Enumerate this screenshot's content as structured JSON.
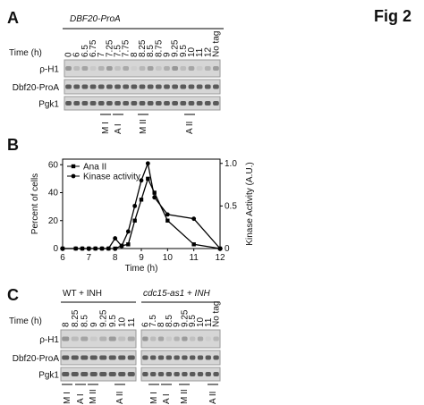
{
  "figure_label": "Fig 2",
  "panel_a": {
    "label": "A",
    "title": "DBF20-ProA",
    "time_label": "Time (h)",
    "times": [
      "0",
      "6",
      "6.5",
      "6.75",
      "7",
      "7.25",
      "7.5",
      "7.75",
      "8",
      "8.25",
      "8.5",
      "8.75",
      "9",
      "9.25",
      "9.5",
      "10",
      "11",
      "12",
      "No tag"
    ],
    "rows": [
      "ρ-H1",
      "Dbf20-ProA",
      "Pgk1"
    ],
    "phases": [
      "M I",
      "A I",
      "M II",
      "A II"
    ]
  },
  "chart_data": {
    "type": "line",
    "label": "B",
    "xlabel": "Time (h)",
    "ylabel": "Percent of cells",
    "y2label": "Kinase Activity (A.U.)",
    "x": [
      6,
      6.5,
      6.75,
      7,
      7.25,
      7.5,
      7.75,
      8,
      8.25,
      8.5,
      8.75,
      9,
      9.25,
      9.5,
      10,
      11,
      12
    ],
    "series": [
      {
        "name": "Ana II",
        "color": "#000000",
        "marker": "square",
        "values": [
          0,
          0,
          0,
          0,
          0,
          0,
          0,
          0,
          2,
          3,
          20,
          35,
          50,
          40,
          20,
          3,
          0
        ]
      },
      {
        "name": "Kinase activity",
        "color": "#000000",
        "marker": "circle",
        "axis": "y2",
        "values": [
          0,
          0,
          0,
          0,
          0,
          0,
          0,
          0.12,
          0.03,
          0.2,
          0.5,
          0.8,
          1.0,
          0.6,
          0.4,
          0.35,
          0
        ]
      }
    ],
    "xlim": [
      6,
      12
    ],
    "xticks": [
      6,
      7,
      8,
      9,
      10,
      11,
      12
    ],
    "ylim": [
      0,
      64
    ],
    "yticks": [
      0,
      20,
      40,
      60
    ],
    "y2lim": [
      0,
      1.05
    ],
    "y2ticks": [
      0,
      {
        "value": 0.5,
        "label": "0.5"
      },
      {
        "value": 1,
        "label": "1.0"
      }
    ],
    "legend": "upper left"
  },
  "panel_c": {
    "label": "C",
    "time_label": "Time (h)",
    "groups": [
      {
        "title": "WT + INH",
        "times": [
          "8",
          "8.25",
          "8.5",
          "9",
          "9.25",
          "9.5",
          "10",
          "11"
        ],
        "phases": [
          "M I",
          "A I",
          "M II",
          "A II"
        ]
      },
      {
        "title": "cdc15-as1 + INH",
        "times": [
          "6",
          "7.5",
          "8",
          "8.5",
          "9",
          "9.25",
          "9.5",
          "10",
          "11",
          "No tag"
        ],
        "phases": [
          "M I",
          "A I",
          "M II",
          "A II"
        ]
      }
    ],
    "rows": [
      "ρ-H1",
      "Dbf20-ProA",
      "Pgk1"
    ]
  }
}
